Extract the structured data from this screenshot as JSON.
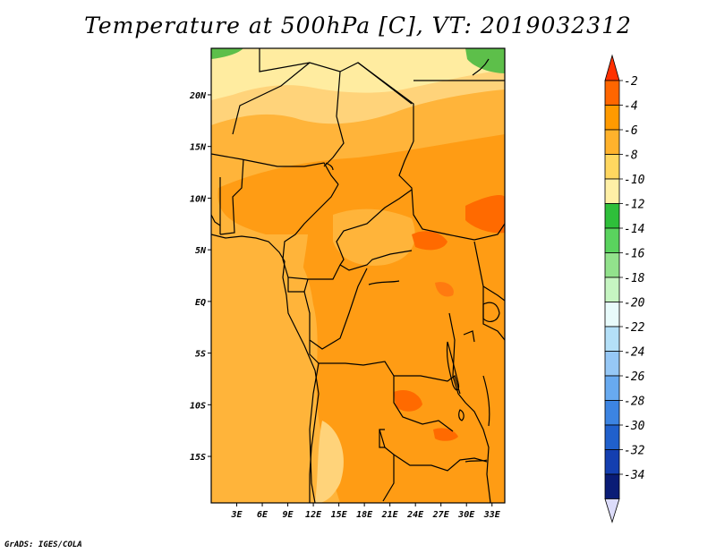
{
  "title": "Temperature at 500hPa [C], VT: 2019032312",
  "credit": "GrADS: IGES/COLA",
  "map": {
    "lat_labels": [
      "20N",
      "15N",
      "10N",
      "5N",
      "EQ",
      "5S",
      "10S",
      "15S"
    ],
    "lon_labels": [
      "3E",
      "6E",
      "9E",
      "12E",
      "15E",
      "18E",
      "21E",
      "24E",
      "27E",
      "30E",
      "33E"
    ],
    "extent": {
      "lon": [
        0,
        34.5
      ],
      "lat": [
        -19.5,
        24.5
      ]
    }
  },
  "colorbar": {
    "labels": [
      "-2",
      "-4",
      "-6",
      "-8",
      "-10",
      "-12",
      "-14",
      "-16",
      "-18",
      "-20",
      "-22",
      "-24",
      "-26",
      "-28",
      "-30",
      "-32",
      "-34"
    ],
    "colors": [
      "#ff3000",
      "#ff6600",
      "#ff9a00",
      "#ffb22c",
      "#ffd760",
      "#fff0a6",
      "#2ebf3a",
      "#5ad35e",
      "#92e28c",
      "#c6f5c2",
      "#e8fbfb",
      "#b4e0f8",
      "#96c8f6",
      "#68aaf0",
      "#3c84e2",
      "#2060cc",
      "#143fb0",
      "#0a1c76",
      "#dcdcfa"
    ]
  }
}
